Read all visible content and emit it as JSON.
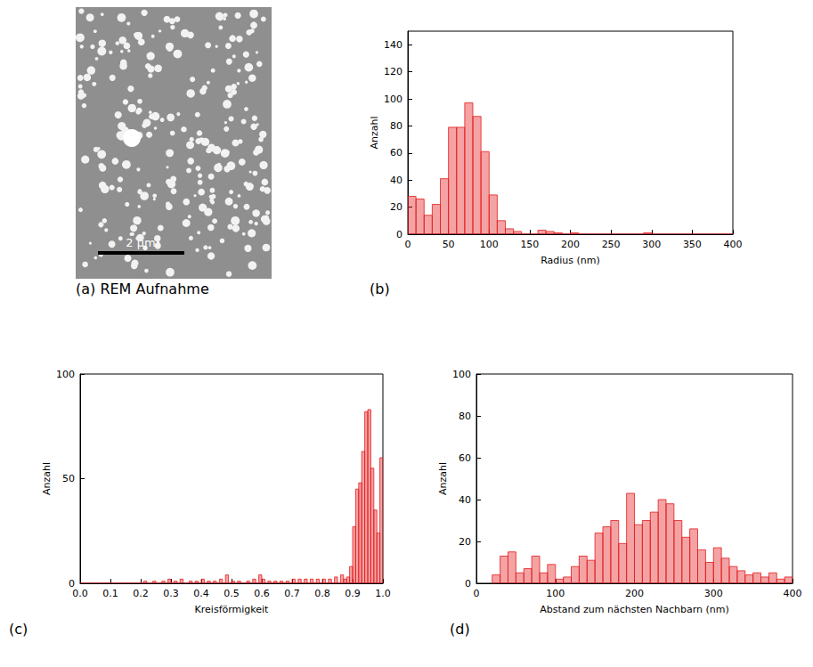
{
  "chart_data": [
    {
      "type": "image",
      "label": "(a)",
      "title": "REM Aufnahme",
      "scale_bar": "2 µm"
    },
    {
      "type": "histogram",
      "label": "(b)",
      "xlabel": "Radius (nm)",
      "ylabel": "Anzahl",
      "color": "#e41a1c",
      "bins": [
        0,
        10,
        20,
        30,
        40,
        50,
        60,
        70,
        80,
        90,
        100,
        110,
        120,
        130,
        140,
        150,
        160,
        170,
        180,
        190,
        200,
        210,
        220,
        230,
        240,
        250,
        260,
        270,
        280,
        290,
        300,
        310,
        320,
        330,
        340,
        350,
        360,
        370,
        380,
        390,
        400
      ],
      "values": [
        28,
        26,
        14,
        22,
        41,
        79,
        79,
        97,
        87,
        61,
        29,
        10,
        4,
        2,
        0,
        0,
        3,
        2,
        1,
        0,
        1,
        0,
        0,
        0,
        0,
        0,
        0,
        0,
        0,
        1,
        0,
        0,
        0,
        0,
        0,
        0,
        0,
        0,
        0,
        0
      ],
      "xlim": [
        0,
        400
      ],
      "xticks": [
        0,
        50,
        100,
        150,
        200,
        250,
        300,
        350,
        400
      ],
      "ylim": [
        0,
        150
      ],
      "yticks": [
        0,
        20,
        40,
        60,
        80,
        100,
        120,
        140
      ]
    },
    {
      "type": "histogram",
      "label": "(c)",
      "xlabel": "Kreisförmigkeit",
      "ylabel": "Anzahl",
      "color": "#e41a1c",
      "bins": [
        0,
        0.01,
        0.02,
        0.03,
        0.04,
        0.05,
        0.06,
        0.07,
        0.08,
        0.09,
        0.1,
        0.11,
        0.12,
        0.13,
        0.14,
        0.15,
        0.16,
        0.17,
        0.18,
        0.19,
        0.2,
        0.21,
        0.22,
        0.23,
        0.24,
        0.25,
        0.26,
        0.27,
        0.28,
        0.29,
        0.3,
        0.31,
        0.32,
        0.33,
        0.34,
        0.35,
        0.36,
        0.37,
        0.38,
        0.39,
        0.4,
        0.41,
        0.42,
        0.43,
        0.44,
        0.45,
        0.46,
        0.47,
        0.48,
        0.49,
        0.5,
        0.51,
        0.52,
        0.53,
        0.54,
        0.55,
        0.56,
        0.57,
        0.58,
        0.59,
        0.6,
        0.61,
        0.62,
        0.63,
        0.64,
        0.65,
        0.66,
        0.67,
        0.68,
        0.69,
        0.7,
        0.71,
        0.72,
        0.73,
        0.74,
        0.75,
        0.76,
        0.77,
        0.78,
        0.79,
        0.8,
        0.81,
        0.82,
        0.83,
        0.84,
        0.85,
        0.86,
        0.87,
        0.88,
        0.89,
        0.9,
        0.91,
        0.92,
        0.93,
        0.94,
        0.95,
        0.96,
        0.97,
        0.98,
        0.99,
        1
      ],
      "values": [
        0,
        0,
        0,
        0,
        0,
        0,
        0,
        0,
        0,
        0,
        0,
        0,
        0,
        0,
        0,
        0,
        0,
        0,
        0,
        0,
        0,
        1,
        0,
        0,
        1,
        0,
        0,
        1,
        0,
        2,
        0,
        1,
        0,
        2,
        0,
        0,
        1,
        0,
        1,
        0,
        2,
        0,
        1,
        0,
        1,
        0,
        2,
        0,
        4,
        0,
        1,
        0,
        1,
        0,
        0,
        1,
        0,
        2,
        0,
        4,
        2,
        0,
        1,
        0,
        1,
        0,
        1,
        0,
        1,
        0,
        2,
        0,
        2,
        0,
        2,
        0,
        2,
        0,
        2,
        0,
        2,
        0,
        2,
        0,
        3,
        0,
        4,
        2,
        3,
        8,
        27,
        45,
        48,
        63,
        82,
        83,
        55,
        35,
        24,
        60
      ],
      "xlim": [
        0,
        1
      ],
      "xticks": [
        {
          "value": 0,
          "label": "0.0"
        },
        0.1,
        0.2,
        0.3,
        0.4,
        0.5,
        0.6,
        0.7,
        0.8,
        0.9,
        {
          "value": 1,
          "label": "1.0"
        }
      ],
      "ylim": [
        0,
        100
      ],
      "yticks": [
        0,
        50,
        100
      ]
    },
    {
      "type": "histogram",
      "label": "(d)",
      "xlabel": "Abstand zum nächsten Nachbarn (nm)",
      "ylabel": "Anzahl",
      "color": "#e41a1c",
      "bins": [
        20,
        30,
        40,
        50,
        60,
        70,
        80,
        90,
        100,
        110,
        120,
        130,
        140,
        150,
        160,
        170,
        180,
        190,
        200,
        210,
        220,
        230,
        240,
        250,
        260,
        270,
        280,
        290,
        300,
        310,
        320,
        330,
        340,
        350,
        360,
        370,
        380,
        390,
        400
      ],
      "values": [
        4,
        13,
        15,
        5,
        7,
        13,
        5,
        9,
        2,
        3,
        8,
        13,
        11,
        24,
        27,
        30,
        19,
        43,
        28,
        30,
        34,
        40,
        38,
        30,
        22,
        26,
        16,
        10,
        17,
        12,
        8,
        6,
        4,
        5,
        3,
        5,
        2,
        3
      ],
      "xlim": [
        0,
        400
      ],
      "xticks": [
        0,
        100,
        200,
        300,
        400
      ],
      "ylim": [
        0,
        100
      ],
      "yticks": [
        0,
        20,
        40,
        60,
        80,
        100
      ]
    }
  ]
}
